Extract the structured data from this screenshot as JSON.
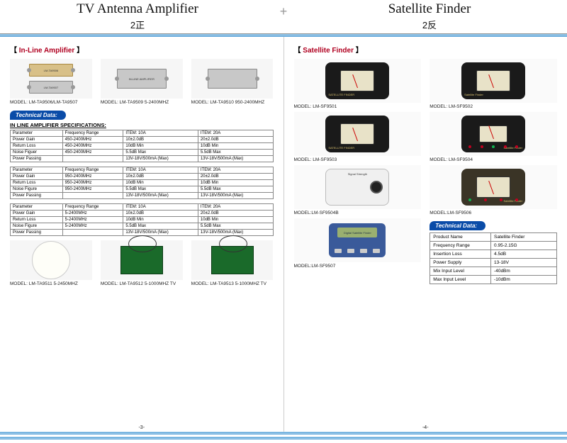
{
  "header": {
    "left_title": "TV Antenna Amplifier",
    "left_sub": "2正",
    "right_title": "Satellite Finder",
    "right_sub": "2反",
    "plus": "+"
  },
  "left": {
    "section_title": "In-Line Amplifier",
    "products_row1": [
      {
        "label": "MODEL: LM-TA9506/LM-TA9507",
        "t1": "LM-TA9506",
        "t2": "LM-TA9507"
      },
      {
        "label": "MODEL: LM-TA9509 5-2400MHZ",
        "t1": "IN-LINE AMPLIFIER"
      },
      {
        "label": "MODEL: LM-TA9510 950-2400MHZ",
        "t1": ""
      }
    ],
    "tech_pill": "Technical Data:",
    "spec_heading": "IN LINE AMPLIFIER SPECIFICATIONS:",
    "tables": [
      {
        "rows": [
          [
            "Parameter",
            "Frequency Range",
            "ITEM: 10A",
            "ITEM: 20A"
          ],
          [
            "Power Gain",
            "450-2400MHz",
            "10±2.0dB",
            "20±2.0dB"
          ],
          [
            "Return Loss",
            "450-2400MHz",
            "10dB  Min",
            "10dB  Min"
          ],
          [
            "Noise Figuer",
            "450-2400MHz",
            "5.5dB  Max",
            "5.5dB  Max"
          ],
          [
            "Power Passing",
            "",
            "13V-18V/500mA (Max)",
            "13V-18V/500mA (Max)"
          ]
        ]
      },
      {
        "rows": [
          [
            "Parameter",
            "Frequency Range",
            "ITEM: 10A",
            "ITEM: 20A"
          ],
          [
            "Power Gain",
            "950-2400MHz",
            "10±2.0dB",
            "20±2.0dB"
          ],
          [
            "Return Loss",
            "950-2400MHz",
            "10dB  Min",
            "10dB  Min"
          ],
          [
            "Noise Figure",
            "950-2400MHz",
            "5.5dB  Max",
            "5.5dB  Max"
          ],
          [
            "Power Passing",
            "",
            "13V-18V/500mA (Max)",
            "13V-18V/500mA (Max)"
          ]
        ]
      },
      {
        "rows": [
          [
            "Parameter",
            "Frequency Range",
            "ITEM: 10A",
            "ITEM: 20A"
          ],
          [
            "Power Gain",
            "5-2400MHz",
            "10±2.0dB",
            "20±2.0dB"
          ],
          [
            "Return Loss",
            "5-2400MHz",
            "10dB  Min",
            "10dB  Min"
          ],
          [
            "Noise Figure",
            "5-2400MHz",
            "5.5dB  Max",
            "5.5dB  Max"
          ],
          [
            "Power Passing",
            "",
            "13V-18V/500mA (Max)",
            "13V-18V/500mA (Max)"
          ]
        ]
      }
    ],
    "products_row2": [
      {
        "label": "MODEL: LM-TA9511 5-2450MHZ"
      },
      {
        "label": "MODEL: LM-TA9512 5-1000MHZ TV"
      },
      {
        "label": "MODEL: LM-TA9513 5-1000MHZ TV"
      }
    ],
    "pagenum": "-3-"
  },
  "right": {
    "section_title": "Satellite Finder",
    "products": [
      {
        "label": "MODEL: LM-SF9501",
        "txt": "SATELLITE FINDER",
        "variant": "black"
      },
      {
        "label": "MODEL: LM-SF9502",
        "txt": "Satellite Finder",
        "variant": "black"
      },
      {
        "label": "MODEL: LM-SF9503",
        "txt": "SATELLITE FINDER",
        "variant": "black"
      },
      {
        "label": "MODEL: LM-SF9504",
        "txt": "Satellite Finder",
        "variant": "blackled"
      },
      {
        "label": "MODEL:LM-SF9504B",
        "txt": "Signal Strength",
        "variant": "white"
      },
      {
        "label": "MODEL:LM-SF9506",
        "txt": "Satellite Finder",
        "variant": "tanled"
      },
      {
        "label": "MODEL:LM-SF9507",
        "txt": "Digital Satellite Finder",
        "variant": "lcd"
      }
    ],
    "tech_pill": "Technical Data:",
    "tech_table": [
      [
        "Product Name",
        "Satellite Finder"
      ],
      [
        "Frequency Range",
        "0.95-2.15G"
      ],
      [
        "Insertion Loss",
        "4.5dB"
      ],
      [
        "Power Supply",
        "13-18V"
      ],
      [
        "Mix Input Level",
        "-40dBm"
      ],
      [
        "Max Input Level",
        "-10dBm"
      ]
    ],
    "pagenum": "-4-"
  }
}
